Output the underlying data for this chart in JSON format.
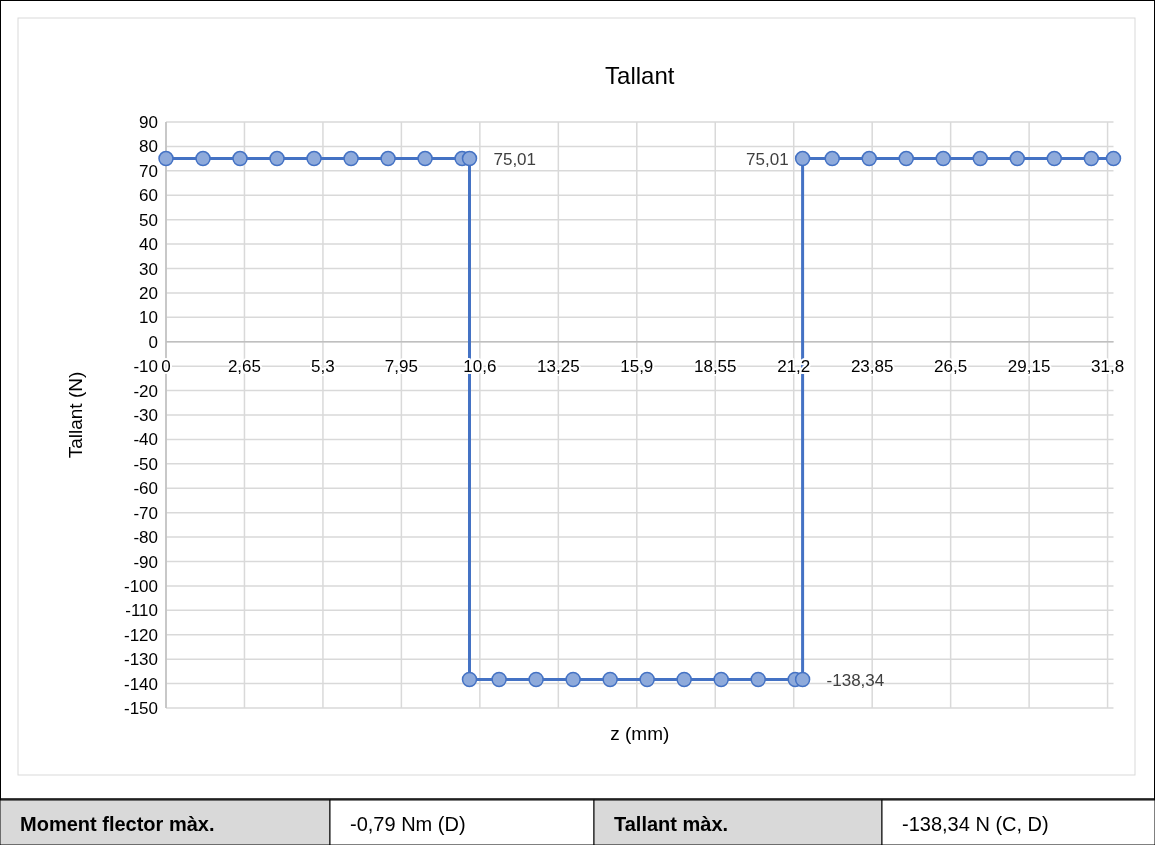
{
  "chart_data": {
    "type": "line",
    "title": "Tallant",
    "xlabel": "z (mm)",
    "ylabel": "Tallant (N)",
    "xlim": [
      0,
      32
    ],
    "ylim": [
      -150,
      90
    ],
    "xticks": [
      0,
      {
        "value": 2.65,
        "label": "2,65"
      },
      {
        "value": 5.3,
        "label": "5,3"
      },
      {
        "value": 7.95,
        "label": "7,95"
      },
      {
        "value": 10.6,
        "label": "10,6"
      },
      {
        "value": 13.25,
        "label": "13,25"
      },
      {
        "value": 15.9,
        "label": "15,9"
      },
      {
        "value": 18.55,
        "label": "18,55"
      },
      {
        "value": 21.2,
        "label": "21,2"
      },
      {
        "value": 23.85,
        "label": "23,85"
      },
      {
        "value": 26.5,
        "label": "26,5"
      },
      {
        "value": 29.15,
        "label": "29,15"
      },
      {
        "value": 31.8,
        "label": "31,8"
      }
    ],
    "yticks": [
      -150,
      -140,
      -130,
      -120,
      -110,
      -100,
      -90,
      -80,
      -70,
      -60,
      -50,
      -40,
      -30,
      -20,
      -10,
      0,
      10,
      20,
      30,
      40,
      50,
      60,
      70,
      80,
      90
    ],
    "grid": true,
    "marker": "circle",
    "line_style": "solid",
    "series": [
      {
        "color": "#4472c4",
        "x": [
          0,
          1.25,
          2.5,
          3.75,
          5,
          6.25,
          7.5,
          8.75,
          10,
          10.25,
          10.25,
          11.25,
          12.5,
          13.75,
          15,
          16.25,
          17.5,
          18.75,
          20,
          21.25,
          21.5,
          21.5,
          22.5,
          23.75,
          25,
          26.25,
          27.5,
          28.75,
          30,
          31.25,
          32
        ],
        "values": [
          75.01,
          75.01,
          75.01,
          75.01,
          75.01,
          75.01,
          75.01,
          75.01,
          75.01,
          75.01,
          -138.34,
          -138.34,
          -138.34,
          -138.34,
          -138.34,
          -138.34,
          -138.34,
          -138.34,
          -138.34,
          -138.34,
          -138.34,
          75.01,
          75.01,
          75.01,
          75.01,
          75.01,
          75.01,
          75.01,
          75.01,
          75.01,
          75.01
        ],
        "value_labels": [
          null,
          null,
          null,
          null,
          null,
          null,
          null,
          null,
          null,
          "75,01",
          null,
          null,
          null,
          null,
          null,
          null,
          null,
          null,
          null,
          null,
          "-138,34",
          "75,01",
          null,
          null,
          null,
          null,
          null,
          null,
          null,
          null,
          null
        ]
      }
    ],
    "annotations": [
      "Moment flector màx.",
      "-0,79 Nm (D)",
      "Tallant màx.",
      "-138,34 N (C, D)"
    ]
  }
}
